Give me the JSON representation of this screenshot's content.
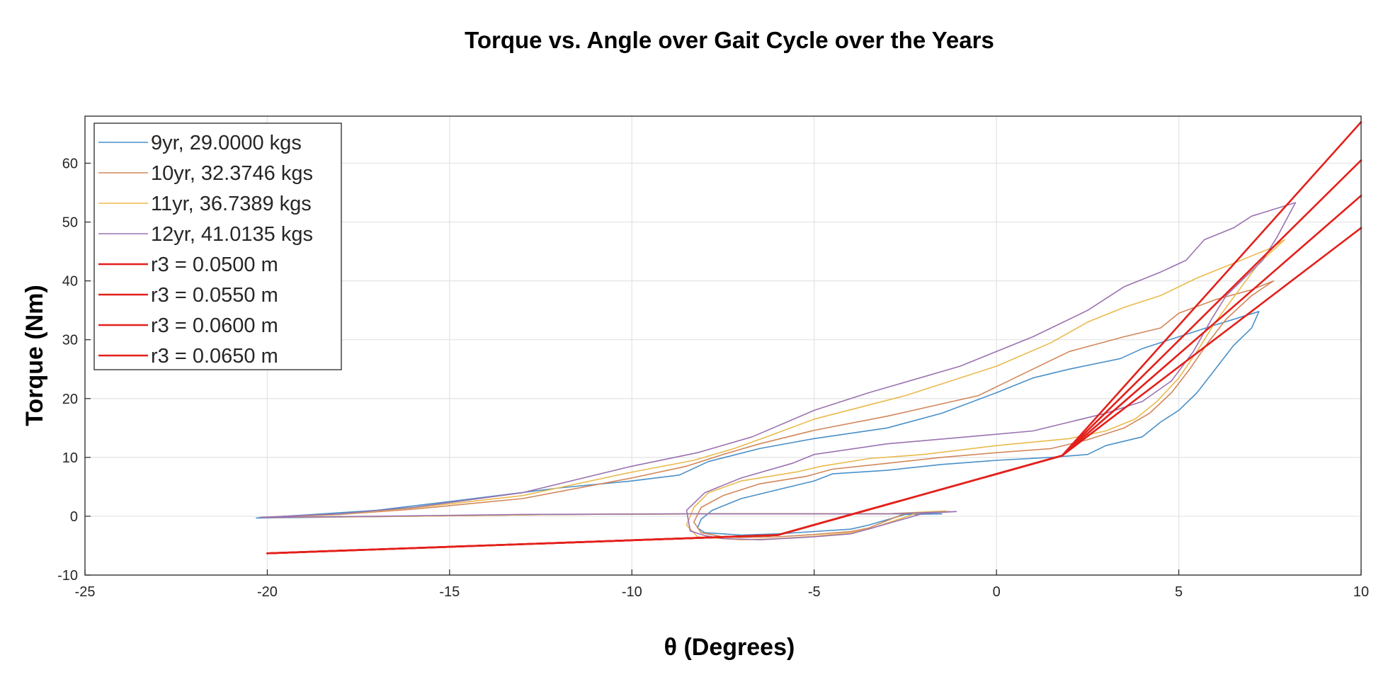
{
  "chart_data": {
    "type": "line",
    "title": "Torque vs. Angle over Gait Cycle over the Years",
    "xlabel": "θ (Degrees)",
    "ylabel": "Torque (Nm)",
    "xlim": [
      -25,
      10
    ],
    "ylim": [
      -10,
      68
    ],
    "xticks": [
      -25,
      -20,
      -15,
      -10,
      -5,
      0,
      5,
      10
    ],
    "yticks": [
      -10,
      0,
      10,
      20,
      30,
      40,
      50,
      60
    ],
    "xtick_labels": [
      "-25",
      "-20",
      "-15",
      "-10",
      "-5",
      "0",
      "5",
      "10"
    ],
    "ytick_labels": [
      "-10",
      "0",
      "10",
      "20",
      "30",
      "40",
      "50",
      "60"
    ],
    "grid": true,
    "legend_position": "top-left",
    "series": [
      {
        "name": "9yr, 29.0000 kgs",
        "color": "#4a90c8",
        "width": 1.6,
        "x": [
          -20.3,
          -19.0,
          -17.0,
          -15.0,
          -12.0,
          -10.0,
          -8.7,
          -7.9,
          -6.5,
          -5.0,
          -3.0,
          -1.5,
          0.0,
          1.0,
          2.0,
          3.4,
          4.0,
          5.0,
          6.0,
          7.2,
          7.0,
          6.5,
          6.0,
          5.5,
          5.0,
          4.5,
          4.0,
          3.0,
          2.5,
          1.5,
          0.0,
          -1.5,
          -3.0,
          -4.5,
          -5.0,
          -6.0,
          -7.0,
          -7.8,
          -8.1,
          -8.2,
          -8.0,
          -7.5,
          -7.0,
          -6.0,
          -5.0,
          -4.0,
          -3.5,
          -2.5,
          -1.5,
          -3.0,
          -5.0,
          -8.0,
          -12.0,
          -16.0,
          -20.3
        ],
        "y": [
          -0.3,
          0.2,
          1.0,
          2.5,
          4.8,
          6.0,
          7.0,
          9.3,
          11.5,
          13.2,
          15.0,
          17.5,
          21.0,
          23.5,
          25.0,
          26.8,
          28.5,
          30.5,
          32.5,
          34.8,
          32.0,
          29.0,
          25.0,
          21.0,
          18.0,
          16.0,
          13.5,
          12.0,
          10.5,
          10.0,
          9.5,
          8.8,
          7.8,
          7.2,
          6.0,
          4.5,
          3.0,
          1.0,
          -0.5,
          -2.0,
          -2.8,
          -3.0,
          -3.2,
          -3.0,
          -2.6,
          -2.2,
          -1.5,
          0.3,
          0.4,
          0.4,
          0.4,
          0.4,
          0.3,
          0.0,
          -0.3
        ]
      },
      {
        "name": "10yr, 32.3746 kgs",
        "color": "#d2875a",
        "width": 1.6,
        "x": [
          -20.0,
          -18.0,
          -16.0,
          -13.0,
          -10.0,
          -8.5,
          -7.5,
          -6.5,
          -5.0,
          -3.0,
          -0.5,
          0.0,
          1.0,
          2.0,
          3.5,
          4.5,
          5.0,
          6.0,
          7.0,
          7.6,
          7.0,
          6.3,
          5.8,
          5.3,
          4.8,
          4.2,
          3.5,
          2.5,
          1.5,
          0.0,
          -1.5,
          -3.0,
          -4.5,
          -5.2,
          -6.5,
          -7.5,
          -8.1,
          -8.3,
          -8.1,
          -7.5,
          -7.0,
          -6.0,
          -5.0,
          -4.0,
          -3.5,
          -2.5,
          -1.3,
          -3.0,
          -5.0,
          -8.0,
          -12.0,
          -16.0,
          -20.0
        ],
        "y": [
          -0.2,
          0.3,
          1.2,
          3.0,
          6.5,
          8.5,
          10.5,
          12.3,
          14.6,
          17.0,
          20.5,
          22.0,
          25.0,
          28.0,
          30.5,
          32.0,
          34.5,
          36.8,
          38.5,
          40.0,
          37.5,
          33.5,
          29.5,
          25.0,
          21.0,
          17.5,
          15.0,
          13.0,
          11.5,
          10.8,
          10.0,
          9.0,
          8.0,
          6.8,
          5.5,
          3.5,
          1.5,
          -1.0,
          -2.8,
          -3.5,
          -3.6,
          -3.5,
          -3.1,
          -2.6,
          -2.0,
          0.5,
          0.8,
          0.4,
          0.4,
          0.4,
          0.3,
          0.0,
          -0.2
        ]
      },
      {
        "name": "11yr, 36.7389 kgs",
        "color": "#eaba4c",
        "width": 1.6,
        "x": [
          -20.1,
          -18.0,
          -16.0,
          -13.0,
          -10.0,
          -8.3,
          -7.2,
          -6.3,
          -5.0,
          -2.5,
          0.0,
          1.5,
          2.5,
          3.5,
          4.5,
          5.5,
          6.5,
          7.5,
          7.9,
          7.2,
          6.6,
          6.0,
          5.5,
          5.0,
          4.4,
          3.8,
          3.0,
          2.0,
          0.0,
          -2.0,
          -3.5,
          -4.8,
          -5.5,
          -7.0,
          -7.9,
          -8.3,
          -8.5,
          -8.2,
          -7.5,
          -7.0,
          -6.0,
          -5.0,
          -4.0,
          -3.4,
          -2.2,
          -1.4,
          -3.0,
          -5.0,
          -8.0,
          -12.0,
          -16.0,
          -20.1
        ],
        "y": [
          -0.2,
          0.3,
          1.4,
          3.5,
          7.5,
          9.5,
          11.5,
          13.5,
          16.5,
          20.5,
          25.5,
          29.5,
          33.0,
          35.5,
          37.5,
          40.5,
          43.0,
          45.5,
          47.0,
          43.0,
          38.0,
          33.0,
          28.0,
          23.5,
          19.5,
          16.5,
          14.5,
          13.2,
          12.0,
          10.5,
          9.8,
          8.5,
          7.5,
          6.0,
          4.0,
          1.5,
          -1.5,
          -3.5,
          -3.8,
          -4.0,
          -3.8,
          -3.4,
          -2.8,
          -2.0,
          0.5,
          0.9,
          0.4,
          0.4,
          0.4,
          0.3,
          0.0,
          -0.2
        ]
      },
      {
        "name": "12yr, 41.0135 kgs",
        "color": "#9b72b0",
        "width": 1.6,
        "x": [
          -20.2,
          -18.0,
          -16.0,
          -13.0,
          -10.0,
          -8.2,
          -6.7,
          -5.0,
          -3.5,
          -1.0,
          1.0,
          2.5,
          3.5,
          4.5,
          5.2,
          5.7,
          6.5,
          7.0,
          8.2,
          7.7,
          7.3,
          6.8,
          6.3,
          5.9,
          5.4,
          4.8,
          4.0,
          3.0,
          2.0,
          1.0,
          -0.8,
          -3.0,
          -5.0,
          -5.6,
          -7.0,
          -8.0,
          -8.5,
          -8.4,
          -8.0,
          -7.5,
          -6.5,
          -5.0,
          -4.0,
          -3.4,
          -2.0,
          -1.1,
          -3.0,
          -6.0,
          -9.0,
          -13.0,
          -17.0,
          -20.2
        ],
        "y": [
          -0.2,
          0.4,
          1.5,
          4.0,
          8.5,
          10.8,
          13.5,
          18.0,
          21.0,
          25.5,
          30.5,
          35.0,
          39.0,
          41.5,
          43.5,
          47.0,
          49.0,
          51.0,
          53.3,
          47.5,
          43.5,
          40.5,
          37.5,
          33.5,
          28.0,
          23.0,
          19.5,
          17.5,
          16.0,
          14.5,
          13.5,
          12.3,
          10.5,
          9.0,
          6.5,
          4.0,
          1.0,
          -2.5,
          -3.3,
          -3.8,
          -4.0,
          -3.5,
          -3.0,
          -2.0,
          0.5,
          0.8,
          0.4,
          0.4,
          0.4,
          0.3,
          0.0,
          -0.2
        ]
      },
      {
        "name": "r3 = 0.0500 m",
        "color": "#e3201b",
        "width": 2.6,
        "x": [
          -20.0,
          -6.0,
          1.8,
          10.0
        ],
        "y": [
          -6.3,
          -3.2,
          10.3,
          49.0
        ]
      },
      {
        "name": "r3 = 0.0550 m",
        "color": "#e3201b",
        "width": 2.6,
        "x": [
          -20.0,
          -6.0,
          1.8,
          10.0
        ],
        "y": [
          -6.3,
          -3.2,
          10.3,
          54.5
        ]
      },
      {
        "name": "r3 = 0.0600 m",
        "color": "#e3201b",
        "width": 2.6,
        "x": [
          -20.0,
          -6.0,
          1.8,
          10.0
        ],
        "y": [
          -6.3,
          -3.2,
          10.3,
          60.5
        ]
      },
      {
        "name": "r3 = 0.0650 m",
        "color": "#e3201b",
        "width": 2.6,
        "x": [
          -20.0,
          -6.0,
          1.8,
          10.0
        ],
        "y": [
          -6.3,
          -3.2,
          10.3,
          67.0
        ]
      }
    ]
  }
}
